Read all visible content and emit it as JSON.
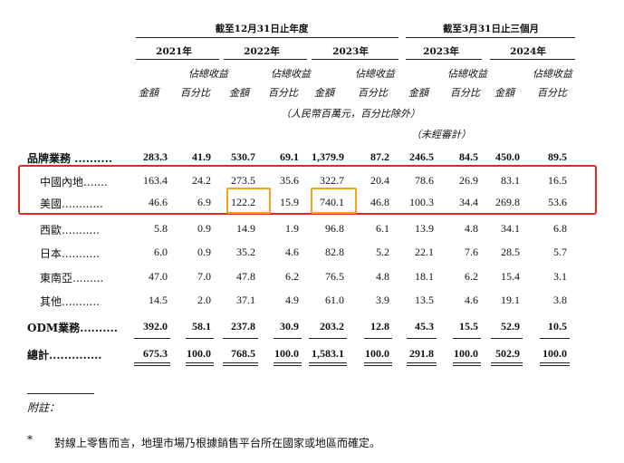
{
  "header": {
    "group_fy": "截至12月31日止年度",
    "group_q": "截至3月31日止三個月",
    "years": [
      "2021年",
      "2022年",
      "2023年",
      "2023年",
      "2024年"
    ],
    "col_amount": "金額",
    "col_pct_line1": "佔總收益",
    "col_pct_line2": "百分比",
    "unit_note": "（人民幣百萬元，百分比除外）",
    "unaudited": "（未經審計）"
  },
  "rows": [
    {
      "label": "品牌業務 ..........",
      "bold": true,
      "values": [
        "283.3",
        "41.9",
        "530.7",
        "69.1",
        "1,379.9",
        "87.2",
        "246.5",
        "84.5",
        "450.0",
        "89.5"
      ]
    },
    {
      "label": "中國內地.......",
      "bold": false,
      "values": [
        "163.4",
        "24.2",
        "273.5",
        "35.6",
        "322.7",
        "20.4",
        "78.6",
        "26.9",
        "83.1",
        "16.5"
      ]
    },
    {
      "label": "美國............",
      "bold": false,
      "values": [
        "46.6",
        "6.9",
        "122.2",
        "15.9",
        "740.1",
        "46.8",
        "100.3",
        "34.4",
        "269.8",
        "53.6"
      ]
    },
    {
      "label": "西歐...........",
      "bold": false,
      "values": [
        "5.8",
        "0.9",
        "14.9",
        "1.9",
        "96.8",
        "6.1",
        "13.9",
        "4.8",
        "34.1",
        "6.8"
      ]
    },
    {
      "label": "日本...........",
      "bold": false,
      "values": [
        "6.0",
        "0.9",
        "35.2",
        "4.6",
        "82.8",
        "5.2",
        "22.1",
        "7.6",
        "28.5",
        "5.7"
      ]
    },
    {
      "label": "東南亞.........",
      "bold": false,
      "values": [
        "47.0",
        "7.0",
        "47.8",
        "6.2",
        "76.5",
        "4.8",
        "18.1",
        "6.2",
        "15.4",
        "3.1"
      ]
    },
    {
      "label": "其他...........",
      "bold": false,
      "values": [
        "14.5",
        "2.0",
        "37.1",
        "4.9",
        "61.0",
        "3.9",
        "13.5",
        "4.6",
        "19.1",
        "3.8"
      ]
    },
    {
      "label": "ODM業務..........",
      "bold": true,
      "values": [
        "392.0",
        "58.1",
        "237.8",
        "30.9",
        "203.2",
        "12.8",
        "45.3",
        "15.5",
        "52.9",
        "10.5"
      ]
    },
    {
      "label": "總計..............",
      "bold": true,
      "values": [
        "675.3",
        "100.0",
        "768.5",
        "100.0",
        "1,583.1",
        "100.0",
        "291.8",
        "100.0",
        "502.9",
        "100.0"
      ]
    }
  ],
  "notes": {
    "title": "附註：",
    "star": "*",
    "text": "對線上零售而言，地理市場乃根據銷售平台所在國家或地區而確定。"
  },
  "highlight_colors": {
    "red": "#e32626",
    "orange": "#f2a51a"
  }
}
